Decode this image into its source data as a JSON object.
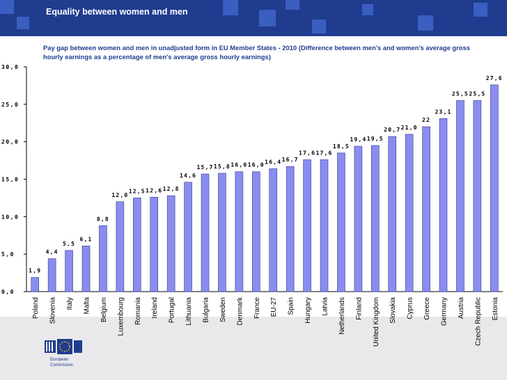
{
  "header": {
    "title": "Equality between women and men"
  },
  "colors": {
    "header": "#1f3c8f",
    "bar": "#8a8cf0",
    "bar_stroke": "#3b3b8a",
    "footer": "#e9e9ec"
  },
  "logo": {
    "name": "eu-commission-logo",
    "text_line1": "European",
    "text_line2": "Commission"
  },
  "chart_data": {
    "type": "bar",
    "title": "Pay gap between women and men in unadjusted form in EU Member States - 2010  (Difference between men's and women's average gross hourly earnings as a percentage of men's average gross hourly earnings)",
    "categories": [
      "Poland",
      "Slovenia",
      "Italy",
      "Malta",
      "Belgium",
      "Luxembourg",
      "Romania",
      "Ireland",
      "Portugal",
      "Lithuania",
      "Bulgaria",
      "Sweden",
      "Denmark",
      "France",
      "EU-27",
      "Spain",
      "Hungary",
      "Latvia",
      "Netherlands",
      "Finland",
      "United Kingdom",
      "Slovakia",
      "Cyprus",
      "Greece",
      "Germany",
      "Austria",
      "Czech Republic",
      "Estonia"
    ],
    "values": [
      1.9,
      4.4,
      5.5,
      6.1,
      8.8,
      12.0,
      12.5,
      12.6,
      12.8,
      14.6,
      15.7,
      15.8,
      16.0,
      16.0,
      16.4,
      16.7,
      17.6,
      17.6,
      18.5,
      19.4,
      19.5,
      20.7,
      21.0,
      22.0,
      23.1,
      25.5,
      25.5,
      27.6
    ],
    "value_labels": [
      "1,9",
      "4,4",
      "5,5",
      "6,1",
      "8,8",
      "12,0",
      "12,5",
      "12,6",
      "12,8",
      "14,6",
      "15,7",
      "15,8",
      "16,0",
      "16,0",
      "16,4",
      "16,7",
      "17,6",
      "17,6",
      "18,5",
      "19,4",
      "19,5",
      "20,7",
      "21,0",
      "22",
      "23,1",
      "25,5",
      "25,5",
      "27,6"
    ],
    "y_ticks": [
      0,
      5,
      10,
      15,
      20,
      25,
      30
    ],
    "y_tick_labels": [
      "0,0",
      "5,0",
      "10,0",
      "15,0",
      "20,0",
      "25,0",
      "30,0"
    ],
    "ylim": [
      0,
      30
    ],
    "xlabel": "",
    "ylabel": "",
    "grid": false,
    "legend": "none"
  }
}
